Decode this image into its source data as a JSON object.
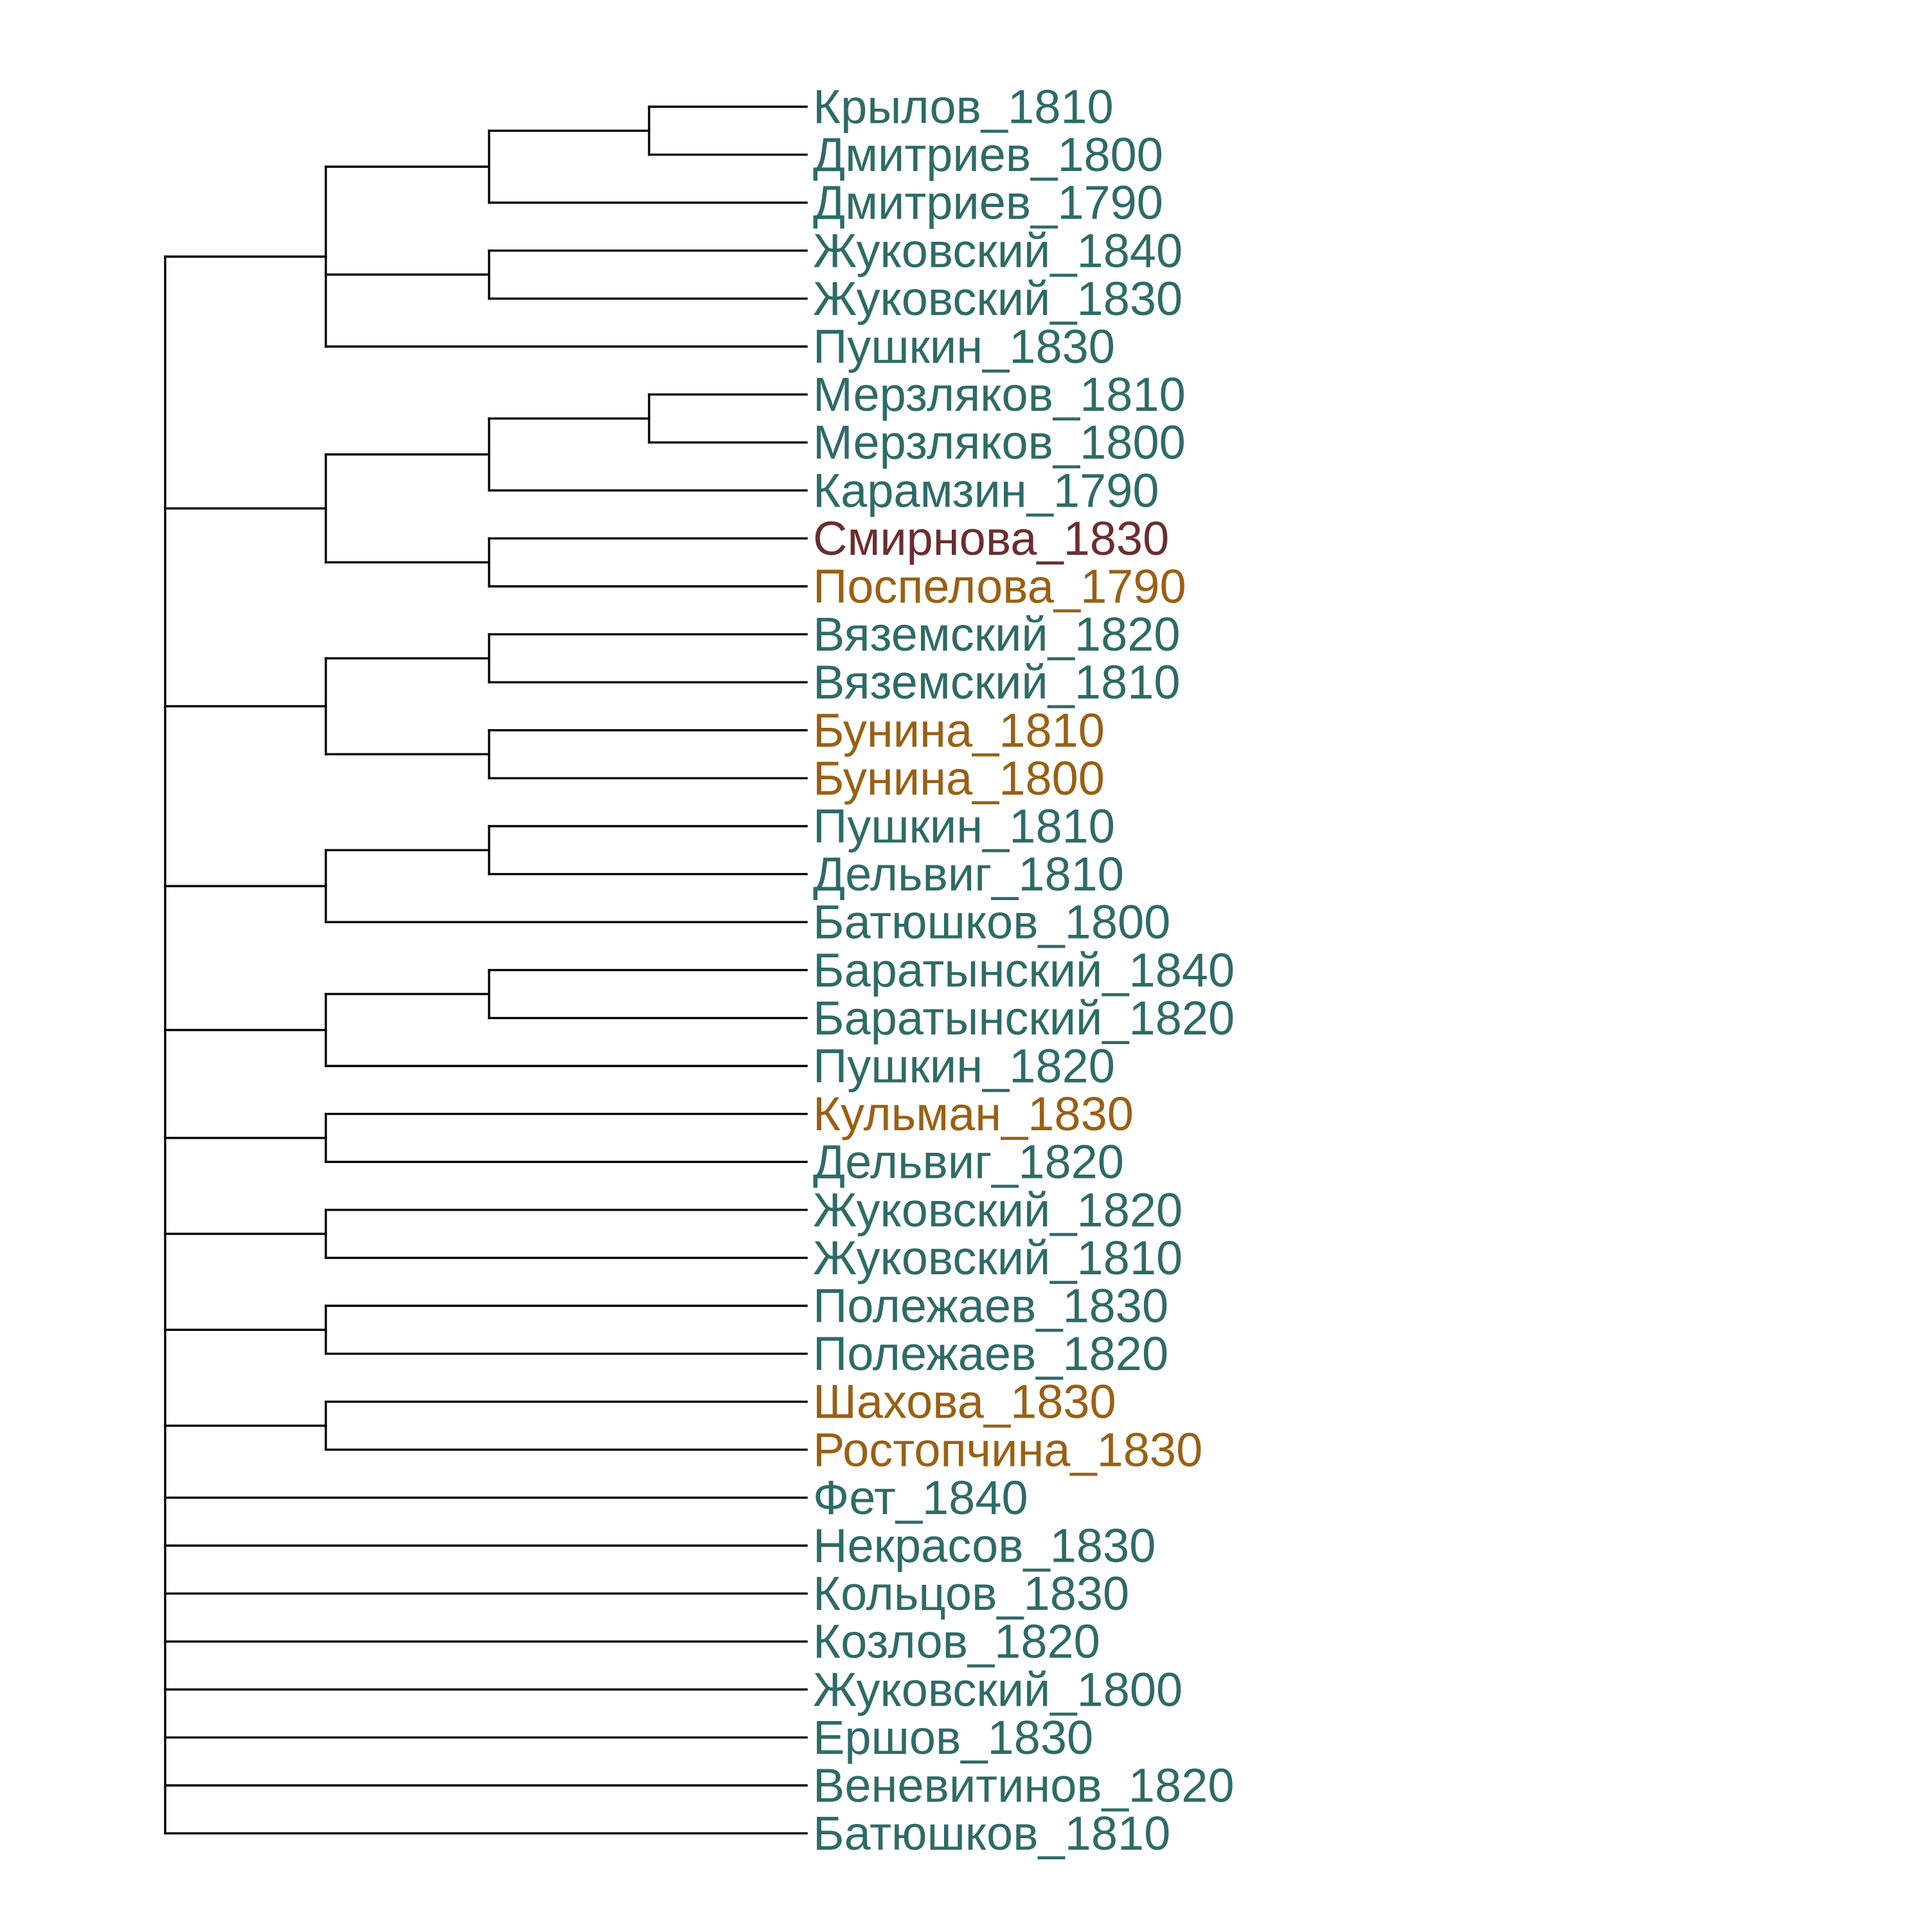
{
  "colors": {
    "male": "#2E6B68",
    "female": "#9A6014",
    "highlight": "#6B2E2E",
    "branch": "#000000"
  },
  "leaves": [
    {
      "label": "Крылов_1810",
      "group": "male"
    },
    {
      "label": "Дмитриев_1800",
      "group": "male"
    },
    {
      "label": "Дмитриев_1790",
      "group": "male"
    },
    {
      "label": "Жуковский_1840",
      "group": "male"
    },
    {
      "label": "Жуковский_1830",
      "group": "male"
    },
    {
      "label": "Пушкин_1830",
      "group": "male"
    },
    {
      "label": "Мерзляков_1810",
      "group": "male"
    },
    {
      "label": "Мерзляков_1800",
      "group": "male"
    },
    {
      "label": "Карамзин_1790",
      "group": "male"
    },
    {
      "label": "Смирнова_1830",
      "group": "highlight"
    },
    {
      "label": "Поспелова_1790",
      "group": "female"
    },
    {
      "label": "Вяземский_1820",
      "group": "male"
    },
    {
      "label": "Вяземский_1810",
      "group": "male"
    },
    {
      "label": "Бунина_1810",
      "group": "female"
    },
    {
      "label": "Бунина_1800",
      "group": "female"
    },
    {
      "label": "Пушкин_1810",
      "group": "male"
    },
    {
      "label": "Дельвиг_1810",
      "group": "male"
    },
    {
      "label": "Батюшков_1800",
      "group": "male"
    },
    {
      "label": "Баратынский_1840",
      "group": "male"
    },
    {
      "label": "Баратынский_1820",
      "group": "male"
    },
    {
      "label": "Пушкин_1820",
      "group": "male"
    },
    {
      "label": "Кульман_1830",
      "group": "female"
    },
    {
      "label": "Дельвиг_1820",
      "group": "male"
    },
    {
      "label": "Жуковский_1820",
      "group": "male"
    },
    {
      "label": "Жуковский_1810",
      "group": "male"
    },
    {
      "label": "Полежаев_1830",
      "group": "male"
    },
    {
      "label": "Полежаев_1820",
      "group": "male"
    },
    {
      "label": "Шахова_1830",
      "group": "female"
    },
    {
      "label": "Ростопчина_1830",
      "group": "female"
    },
    {
      "label": "Фет_1840",
      "group": "male"
    },
    {
      "label": "Некрасов_1830",
      "group": "male"
    },
    {
      "label": "Кольцов_1830",
      "group": "male"
    },
    {
      "label": "Козлов_1820",
      "group": "male"
    },
    {
      "label": "Жуковский_1800",
      "group": "male"
    },
    {
      "label": "Ершов_1830",
      "group": "male"
    },
    {
      "label": "Веневитинов_1820",
      "group": "male"
    },
    {
      "label": "Батюшков_1810",
      "group": "male"
    }
  ],
  "tree": {
    "children": [
      {
        "children": [
          {
            "children": [
              {
                "children": [
                  {
                    "leaf": 0
                  },
                  {
                    "leaf": 1
                  }
                ]
              },
              {
                "leaf": 2
              }
            ]
          },
          {
            "children": [
              {
                "leaf": 3
              },
              {
                "leaf": 4
              }
            ]
          },
          {
            "leaf": 5
          }
        ]
      },
      {
        "children": [
          {
            "children": [
              {
                "children": [
                  {
                    "leaf": 6
                  },
                  {
                    "leaf": 7
                  }
                ]
              },
              {
                "leaf": 8
              }
            ]
          },
          {
            "children": [
              {
                "leaf": 9
              },
              {
                "leaf": 10
              }
            ]
          }
        ]
      },
      {
        "children": [
          {
            "children": [
              {
                "leaf": 11
              },
              {
                "leaf": 12
              }
            ]
          },
          {
            "children": [
              {
                "leaf": 13
              },
              {
                "leaf": 14
              }
            ]
          }
        ]
      },
      {
        "children": [
          {
            "children": [
              {
                "leaf": 15
              },
              {
                "leaf": 16
              }
            ]
          },
          {
            "leaf": 17
          }
        ]
      },
      {
        "children": [
          {
            "children": [
              {
                "leaf": 18
              },
              {
                "leaf": 19
              }
            ]
          },
          {
            "leaf": 20
          }
        ]
      },
      {
        "children": [
          {
            "leaf": 21
          },
          {
            "leaf": 22
          }
        ]
      },
      {
        "children": [
          {
            "leaf": 23
          },
          {
            "leaf": 24
          }
        ]
      },
      {
        "children": [
          {
            "leaf": 25
          },
          {
            "leaf": 26
          }
        ]
      },
      {
        "children": [
          {
            "leaf": 27
          },
          {
            "leaf": 28
          }
        ]
      },
      {
        "leaf": 29
      },
      {
        "leaf": 30
      },
      {
        "leaf": 31
      },
      {
        "leaf": 32
      },
      {
        "leaf": 33
      },
      {
        "leaf": 34
      },
      {
        "leaf": 35
      },
      {
        "leaf": 36
      }
    ]
  }
}
